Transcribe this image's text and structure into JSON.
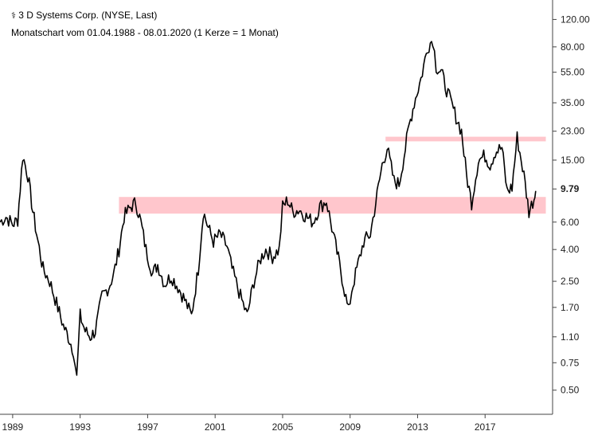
{
  "header": {
    "icon": "candlestick-chart-icon",
    "symbol_glyph": "⚕",
    "title": "3 D Systems Corp. (NYSE, Last)",
    "subtitle": "Monatschart vom 01.04.1988 - 08.01.2020 (1 Kerze = 1 Monat)"
  },
  "chart_data": {
    "type": "line",
    "title": "3 D Systems Corp. (NYSE, Last)",
    "subtitle": "Monatschart vom 01.04.1988 - 08.01.2020 (1 Kerze = 1 Monat)",
    "xlabel": "",
    "ylabel": "",
    "x_ticks": [
      "1989",
      "1993",
      "1997",
      "2001",
      "2005",
      "2009",
      "2013",
      "2017"
    ],
    "y_ticks": [
      "120.00",
      "80.00",
      "55.00",
      "35.00",
      "23.00",
      "15.00",
      "9.79",
      "6.00",
      "4.00",
      "2.50",
      "1.70",
      "1.10",
      "0.75",
      "0.50"
    ],
    "y_scale": "log",
    "ylim": [
      0.35,
      160
    ],
    "xlim": [
      1988.25,
      2021.0
    ],
    "grid": false,
    "line_color": "#000000",
    "zone_color": "#ffc6cc",
    "zones": [
      {
        "from_year": 1995.3,
        "to_year": 2020.6,
        "low": 6.8,
        "high": 8.7
      },
      {
        "from_year": 2011.1,
        "to_year": 2020.6,
        "low": 19.8,
        "high": 21.2
      }
    ],
    "series": [
      {
        "x": [
          1988.25,
          1988.6,
          1989.0,
          1989.3,
          1989.6,
          1989.9,
          1990.2,
          1990.5,
          1990.8,
          1991.2,
          1991.6,
          1992.0,
          1992.3,
          1992.6,
          1992.8,
          1993.0,
          1993.3,
          1993.6,
          1993.9,
          1994.3,
          1994.7,
          1995.0,
          1995.3,
          1995.6,
          1996.0,
          1996.3,
          1996.6,
          1996.9,
          1997.3,
          1997.6,
          1998.0,
          1998.4,
          1998.8,
          1999.2,
          1999.6,
          2000.0,
          2000.3,
          2000.6,
          2000.9,
          2001.3,
          2001.7,
          2002.0,
          2002.5,
          2002.9,
          2003.3,
          2003.7,
          2004.0,
          2004.4,
          2004.8,
          2005.0,
          2005.3,
          2005.6,
          2006.0,
          2006.4,
          2006.8,
          2007.2,
          2007.6,
          2008.0,
          2008.3,
          2008.6,
          2008.9,
          2009.1,
          2009.4,
          2009.8,
          2010.2,
          2010.6,
          2010.9,
          2011.2,
          2011.6,
          2011.9,
          2012.2,
          2012.5,
          2012.8,
          2013.2,
          2013.6,
          2013.9,
          2014.1,
          2014.4,
          2014.8,
          2015.2,
          2015.6,
          2015.9,
          2016.2,
          2016.6,
          2017.0,
          2017.3,
          2017.6,
          2018.0,
          2018.3,
          2018.6,
          2018.9,
          2019.3,
          2019.6,
          2019.9,
          2020.0
        ],
        "y": [
          6.0,
          6.5,
          5.8,
          6.2,
          16.0,
          12.0,
          7.0,
          4.5,
          3.0,
          2.5,
          1.8,
          1.3,
          1.1,
          0.9,
          0.6,
          1.5,
          1.2,
          1.1,
          1.2,
          2.0,
          2.3,
          2.8,
          4.0,
          6.5,
          7.5,
          8.0,
          6.0,
          4.0,
          2.8,
          3.2,
          2.4,
          2.7,
          2.3,
          1.9,
          1.5,
          3.0,
          7.0,
          5.5,
          4.5,
          5.0,
          4.2,
          3.0,
          2.0,
          1.5,
          2.5,
          3.5,
          4.0,
          3.6,
          4.0,
          7.5,
          8.3,
          7.0,
          7.2,
          6.5,
          6.0,
          7.5,
          8.2,
          5.0,
          3.5,
          2.4,
          1.6,
          2.2,
          3.0,
          4.5,
          5.0,
          9.0,
          14.0,
          18.0,
          11.0,
          10.5,
          16.0,
          25.0,
          35.0,
          50.0,
          80.0,
          90.0,
          60.0,
          55.0,
          40.0,
          30.0,
          23.0,
          12.0,
          8.0,
          15.0,
          16.0,
          14.0,
          17.0,
          18.0,
          9.5,
          10.0,
          21.0,
          12.0,
          7.0,
          8.5,
          9.5
        ]
      }
    ]
  }
}
